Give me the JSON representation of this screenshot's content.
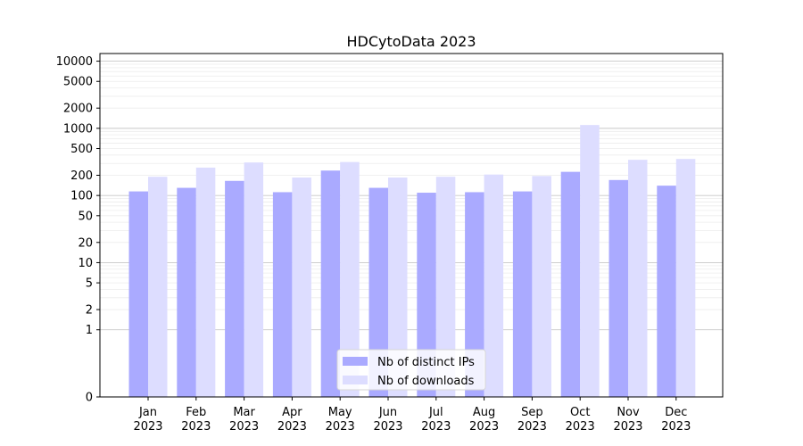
{
  "chart_data": {
    "type": "bar",
    "title": "HDCytoData 2023",
    "xlabel": "",
    "ylabel": "",
    "categories": [
      [
        "Jan",
        "2023"
      ],
      [
        "Feb",
        "2023"
      ],
      [
        "Mar",
        "2023"
      ],
      [
        "Apr",
        "2023"
      ],
      [
        "May",
        "2023"
      ],
      [
        "Jun",
        "2023"
      ],
      [
        "Jul",
        "2023"
      ],
      [
        "Aug",
        "2023"
      ],
      [
        "Sep",
        "2023"
      ],
      [
        "Oct",
        "2023"
      ],
      [
        "Nov",
        "2023"
      ],
      [
        "Dec",
        "2023"
      ]
    ],
    "series": [
      {
        "name": "Nb of distinct IPs",
        "color": "#aaaaff",
        "values": [
          115,
          130,
          165,
          112,
          235,
          130,
          110,
          112,
          115,
          225,
          170,
          140
        ]
      },
      {
        "name": "Nb of downloads",
        "color": "#ddddff",
        "values": [
          190,
          260,
          310,
          185,
          315,
          185,
          190,
          205,
          195,
          1120,
          340,
          350
        ]
      }
    ],
    "y_scale": "symlog",
    "ylim": [
      0,
      13000
    ],
    "y_ticks": [
      0,
      1,
      2,
      5,
      10,
      20,
      50,
      100,
      200,
      500,
      1000,
      2000,
      5000,
      10000
    ],
    "grid": true,
    "legend_position": "lower-center"
  }
}
